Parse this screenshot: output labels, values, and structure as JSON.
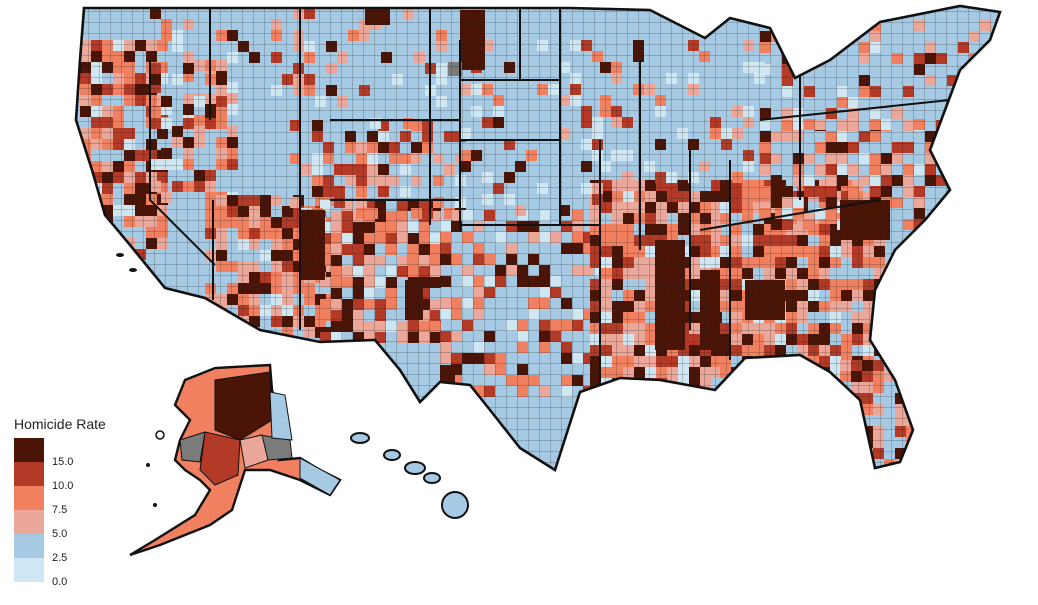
{
  "legend": {
    "title": "Homicide Rate",
    "ticks": [
      "15.0",
      "10.0",
      "7.5",
      "5.0",
      "2.5",
      "0.0"
    ],
    "colors": [
      "#4a1406",
      "#b23a26",
      "#f08060",
      "#eaa79a",
      "#a6cae4",
      "#cfe7f3"
    ]
  },
  "colors": {
    "outline": "#111111",
    "county_line": "#1a1a1a",
    "no_data": "#7b7b7b",
    "background": "#ffffff"
  }
}
